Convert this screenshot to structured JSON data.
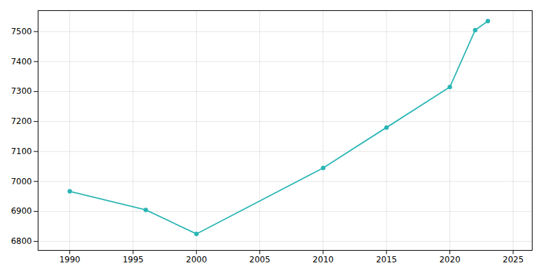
{
  "chart_data": {
    "type": "line",
    "x": [
      1990,
      1996,
      2000,
      2010,
      2015,
      2020,
      2022,
      2023
    ],
    "values": [
      6967,
      6905,
      6825,
      7045,
      7180,
      7315,
      7505,
      7535
    ],
    "color": "#2ab5b5",
    "marker": "circle",
    "xlim": [
      1987.5,
      2026.5
    ],
    "ylim": [
      6770,
      7570
    ],
    "xticks": [
      1990,
      1995,
      2000,
      2005,
      2010,
      2015,
      2020,
      2025
    ],
    "yticks": [
      6800,
      6900,
      7000,
      7100,
      7200,
      7300,
      7400,
      7500
    ],
    "grid": true
  }
}
